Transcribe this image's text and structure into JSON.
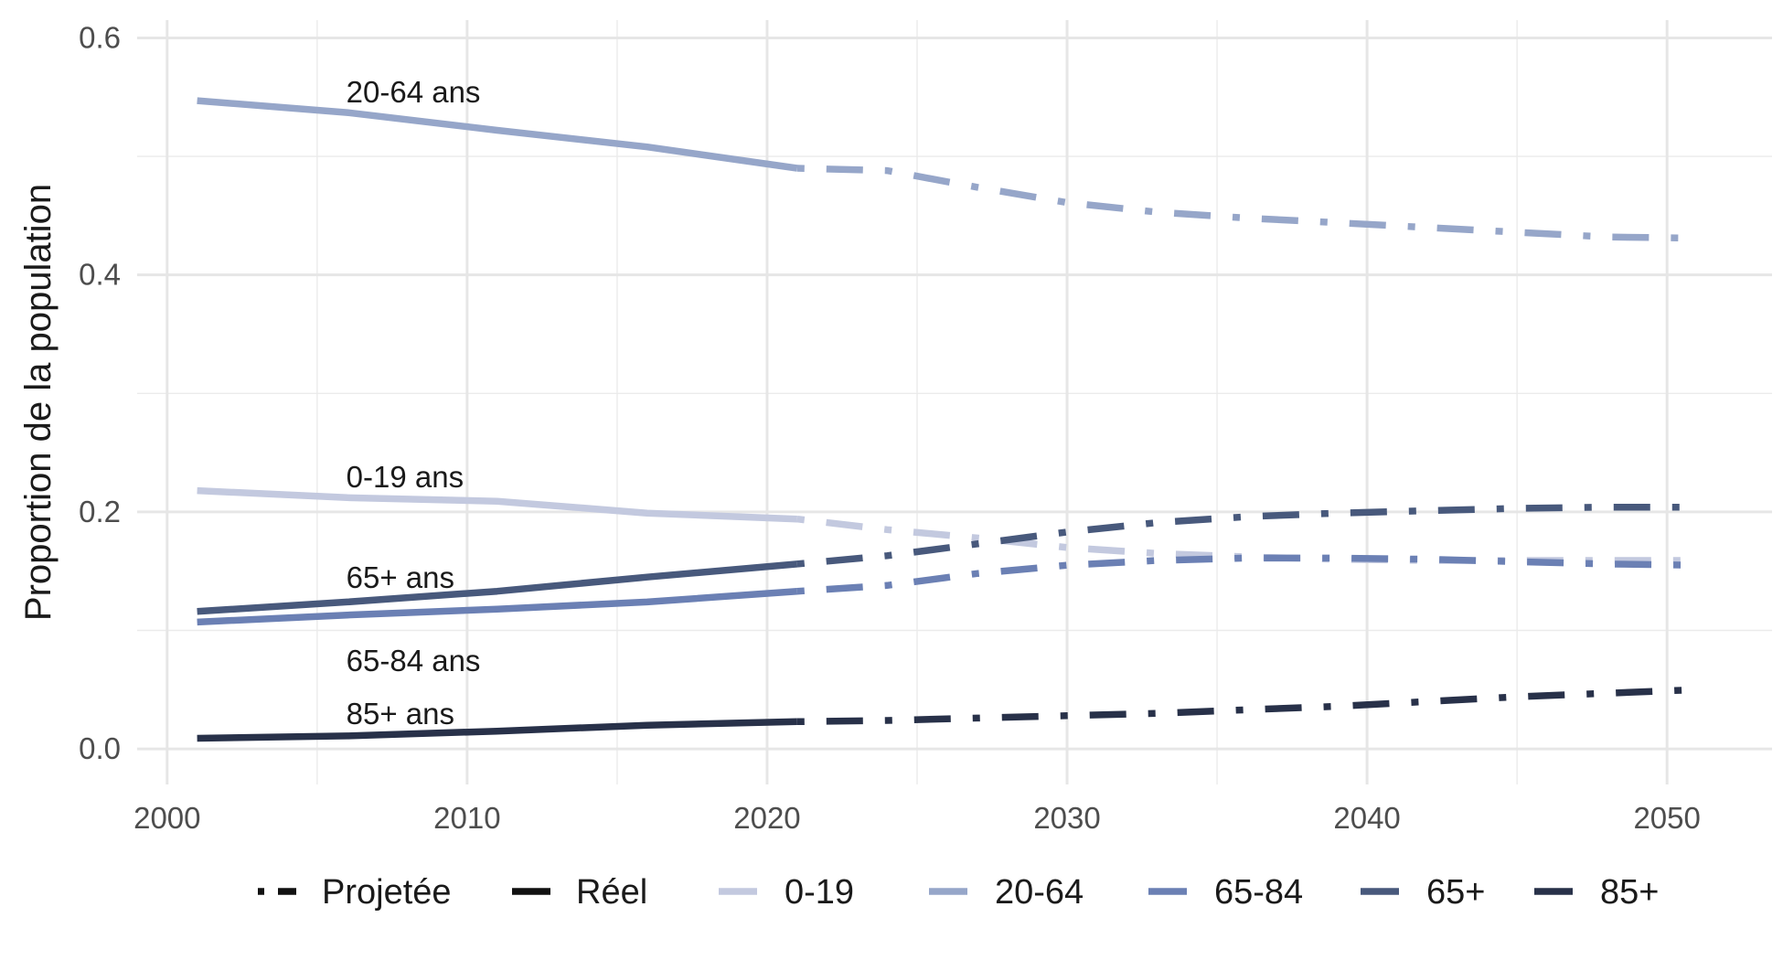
{
  "chart_data": {
    "type": "line",
    "title": "",
    "xlabel": "",
    "ylabel": "Proportion de la population",
    "xlim": [
      1999,
      2053.5
    ],
    "ylim": [
      -0.03,
      0.615
    ],
    "x_ticks": [
      2000,
      2010,
      2020,
      2030,
      2040,
      2050
    ],
    "x_tick_labels": [
      "2000",
      "2010",
      "2020",
      "2030",
      "2040",
      "2050"
    ],
    "y_ticks": [
      0.0,
      0.2,
      0.4,
      0.6
    ],
    "y_tick_labels": [
      "0.0",
      "0.2",
      "0.4",
      "0.6"
    ],
    "y_minor_ticks": [
      0.1,
      0.3,
      0.5
    ],
    "x_minor_ticks": [
      2005,
      2015,
      2025,
      2035,
      2045
    ],
    "grid": true,
    "legend_position": "bottom",
    "split_year": 2021,
    "linetype_legend": [
      {
        "label": "Projetée",
        "style": "dotdash"
      },
      {
        "label": "Réel",
        "style": "solid"
      }
    ],
    "series": [
      {
        "name": "0-19",
        "color": "#c3c9df",
        "annotation": "0-19 ans",
        "annotation_pos": {
          "x": 2006,
          "y": 0.23
        },
        "actual": {
          "x": [
            2001,
            2006,
            2011,
            2016,
            2021
          ],
          "y": [
            0.218,
            0.212,
            0.209,
            0.199,
            0.194
          ]
        },
        "projected": {
          "x": [
            2021,
            2024,
            2027,
            2030,
            2033,
            2036,
            2039,
            2042,
            2045,
            2048,
            2051
          ],
          "y": [
            0.194,
            0.185,
            0.178,
            0.17,
            0.165,
            0.162,
            0.16,
            0.159,
            0.159,
            0.159,
            0.159
          ]
        }
      },
      {
        "name": "20-64",
        "color": "#96a6c9",
        "annotation": "20-64 ans",
        "annotation_pos": {
          "x": 2006,
          "y": 0.555
        },
        "actual": {
          "x": [
            2001,
            2006,
            2011,
            2016,
            2021
          ],
          "y": [
            0.547,
            0.537,
            0.522,
            0.508,
            0.49
          ]
        },
        "projected": {
          "x": [
            2021,
            2024,
            2027,
            2030,
            2033,
            2036,
            2039,
            2042,
            2045,
            2048,
            2051
          ],
          "y": [
            0.49,
            0.488,
            0.474,
            0.461,
            0.453,
            0.448,
            0.444,
            0.44,
            0.436,
            0.432,
            0.431
          ]
        }
      },
      {
        "name": "65-84",
        "color": "#6b80b4",
        "annotation": "65-84 ans",
        "annotation_pos": {
          "x": 2006,
          "y": 0.075
        },
        "actual": {
          "x": [
            2001,
            2006,
            2011,
            2016,
            2021
          ],
          "y": [
            0.107,
            0.113,
            0.118,
            0.124,
            0.133
          ]
        },
        "projected": {
          "x": [
            2021,
            2024,
            2027,
            2030,
            2033,
            2036,
            2039,
            2042,
            2045,
            2048,
            2051
          ],
          "y": [
            0.133,
            0.138,
            0.148,
            0.155,
            0.159,
            0.161,
            0.161,
            0.16,
            0.158,
            0.156,
            0.155
          ]
        }
      },
      {
        "name": "65+",
        "color": "#48597c",
        "annotation": "65+ ans",
        "annotation_pos": {
          "x": 2006,
          "y": 0.145
        },
        "actual": {
          "x": [
            2001,
            2006,
            2011,
            2016,
            2021
          ],
          "y": [
            0.116,
            0.124,
            0.133,
            0.145,
            0.156
          ]
        },
        "projected": {
          "x": [
            2021,
            2024,
            2027,
            2030,
            2033,
            2036,
            2039,
            2042,
            2045,
            2048,
            2051
          ],
          "y": [
            0.156,
            0.163,
            0.173,
            0.183,
            0.191,
            0.196,
            0.199,
            0.201,
            0.203,
            0.204,
            0.204
          ]
        }
      },
      {
        "name": "85+",
        "color": "#283149",
        "annotation": "85+ ans",
        "annotation_pos": {
          "x": 2006,
          "y": 0.03
        },
        "actual": {
          "x": [
            2001,
            2006,
            2011,
            2016,
            2021
          ],
          "y": [
            0.009,
            0.011,
            0.015,
            0.02,
            0.023
          ]
        },
        "projected": {
          "x": [
            2021,
            2024,
            2027,
            2030,
            2033,
            2036,
            2039,
            2042,
            2045,
            2048,
            2051
          ],
          "y": [
            0.023,
            0.024,
            0.026,
            0.028,
            0.03,
            0.033,
            0.036,
            0.04,
            0.044,
            0.047,
            0.05
          ]
        }
      }
    ]
  }
}
